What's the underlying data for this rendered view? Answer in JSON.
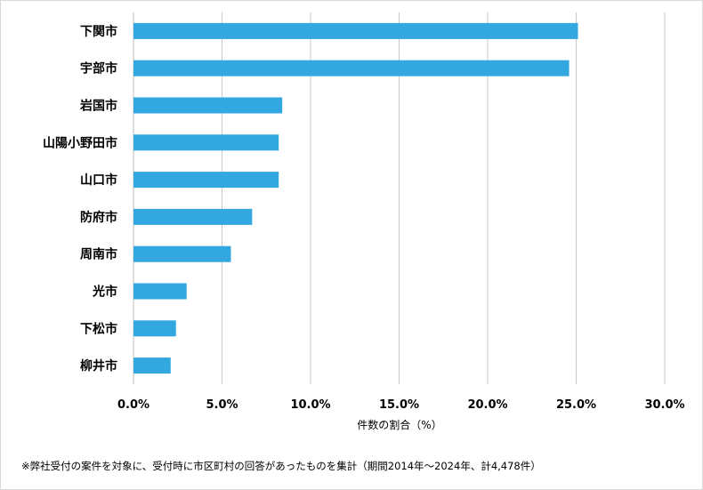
{
  "chart_data": {
    "type": "bar",
    "orientation": "horizontal",
    "categories": [
      "下関市",
      "宇部市",
      "岩国市",
      "山陽小野田市",
      "山口市",
      "防府市",
      "周南市",
      "光市",
      "下松市",
      "柳井市"
    ],
    "values": [
      25.1,
      24.6,
      8.4,
      8.2,
      8.2,
      6.7,
      5.5,
      3.0,
      2.4,
      2.1
    ],
    "xlabel": "件数の割合（%）",
    "ylabel": "",
    "xlim": [
      0,
      30
    ],
    "ticks": [
      0,
      5,
      10,
      15,
      20,
      25,
      30
    ],
    "tick_labels": [
      "0.0%",
      "5.0%",
      "10.0%",
      "15.0%",
      "20.0%",
      "25.0%",
      "30.0%"
    ],
    "bar_color": "#33a7df",
    "grid": true,
    "legend": "none"
  },
  "footnote": "※弊社受付の案件を対象に、受付時に市区町村の回答があったものを集計（期間2014年～2024年、計4,478件）"
}
